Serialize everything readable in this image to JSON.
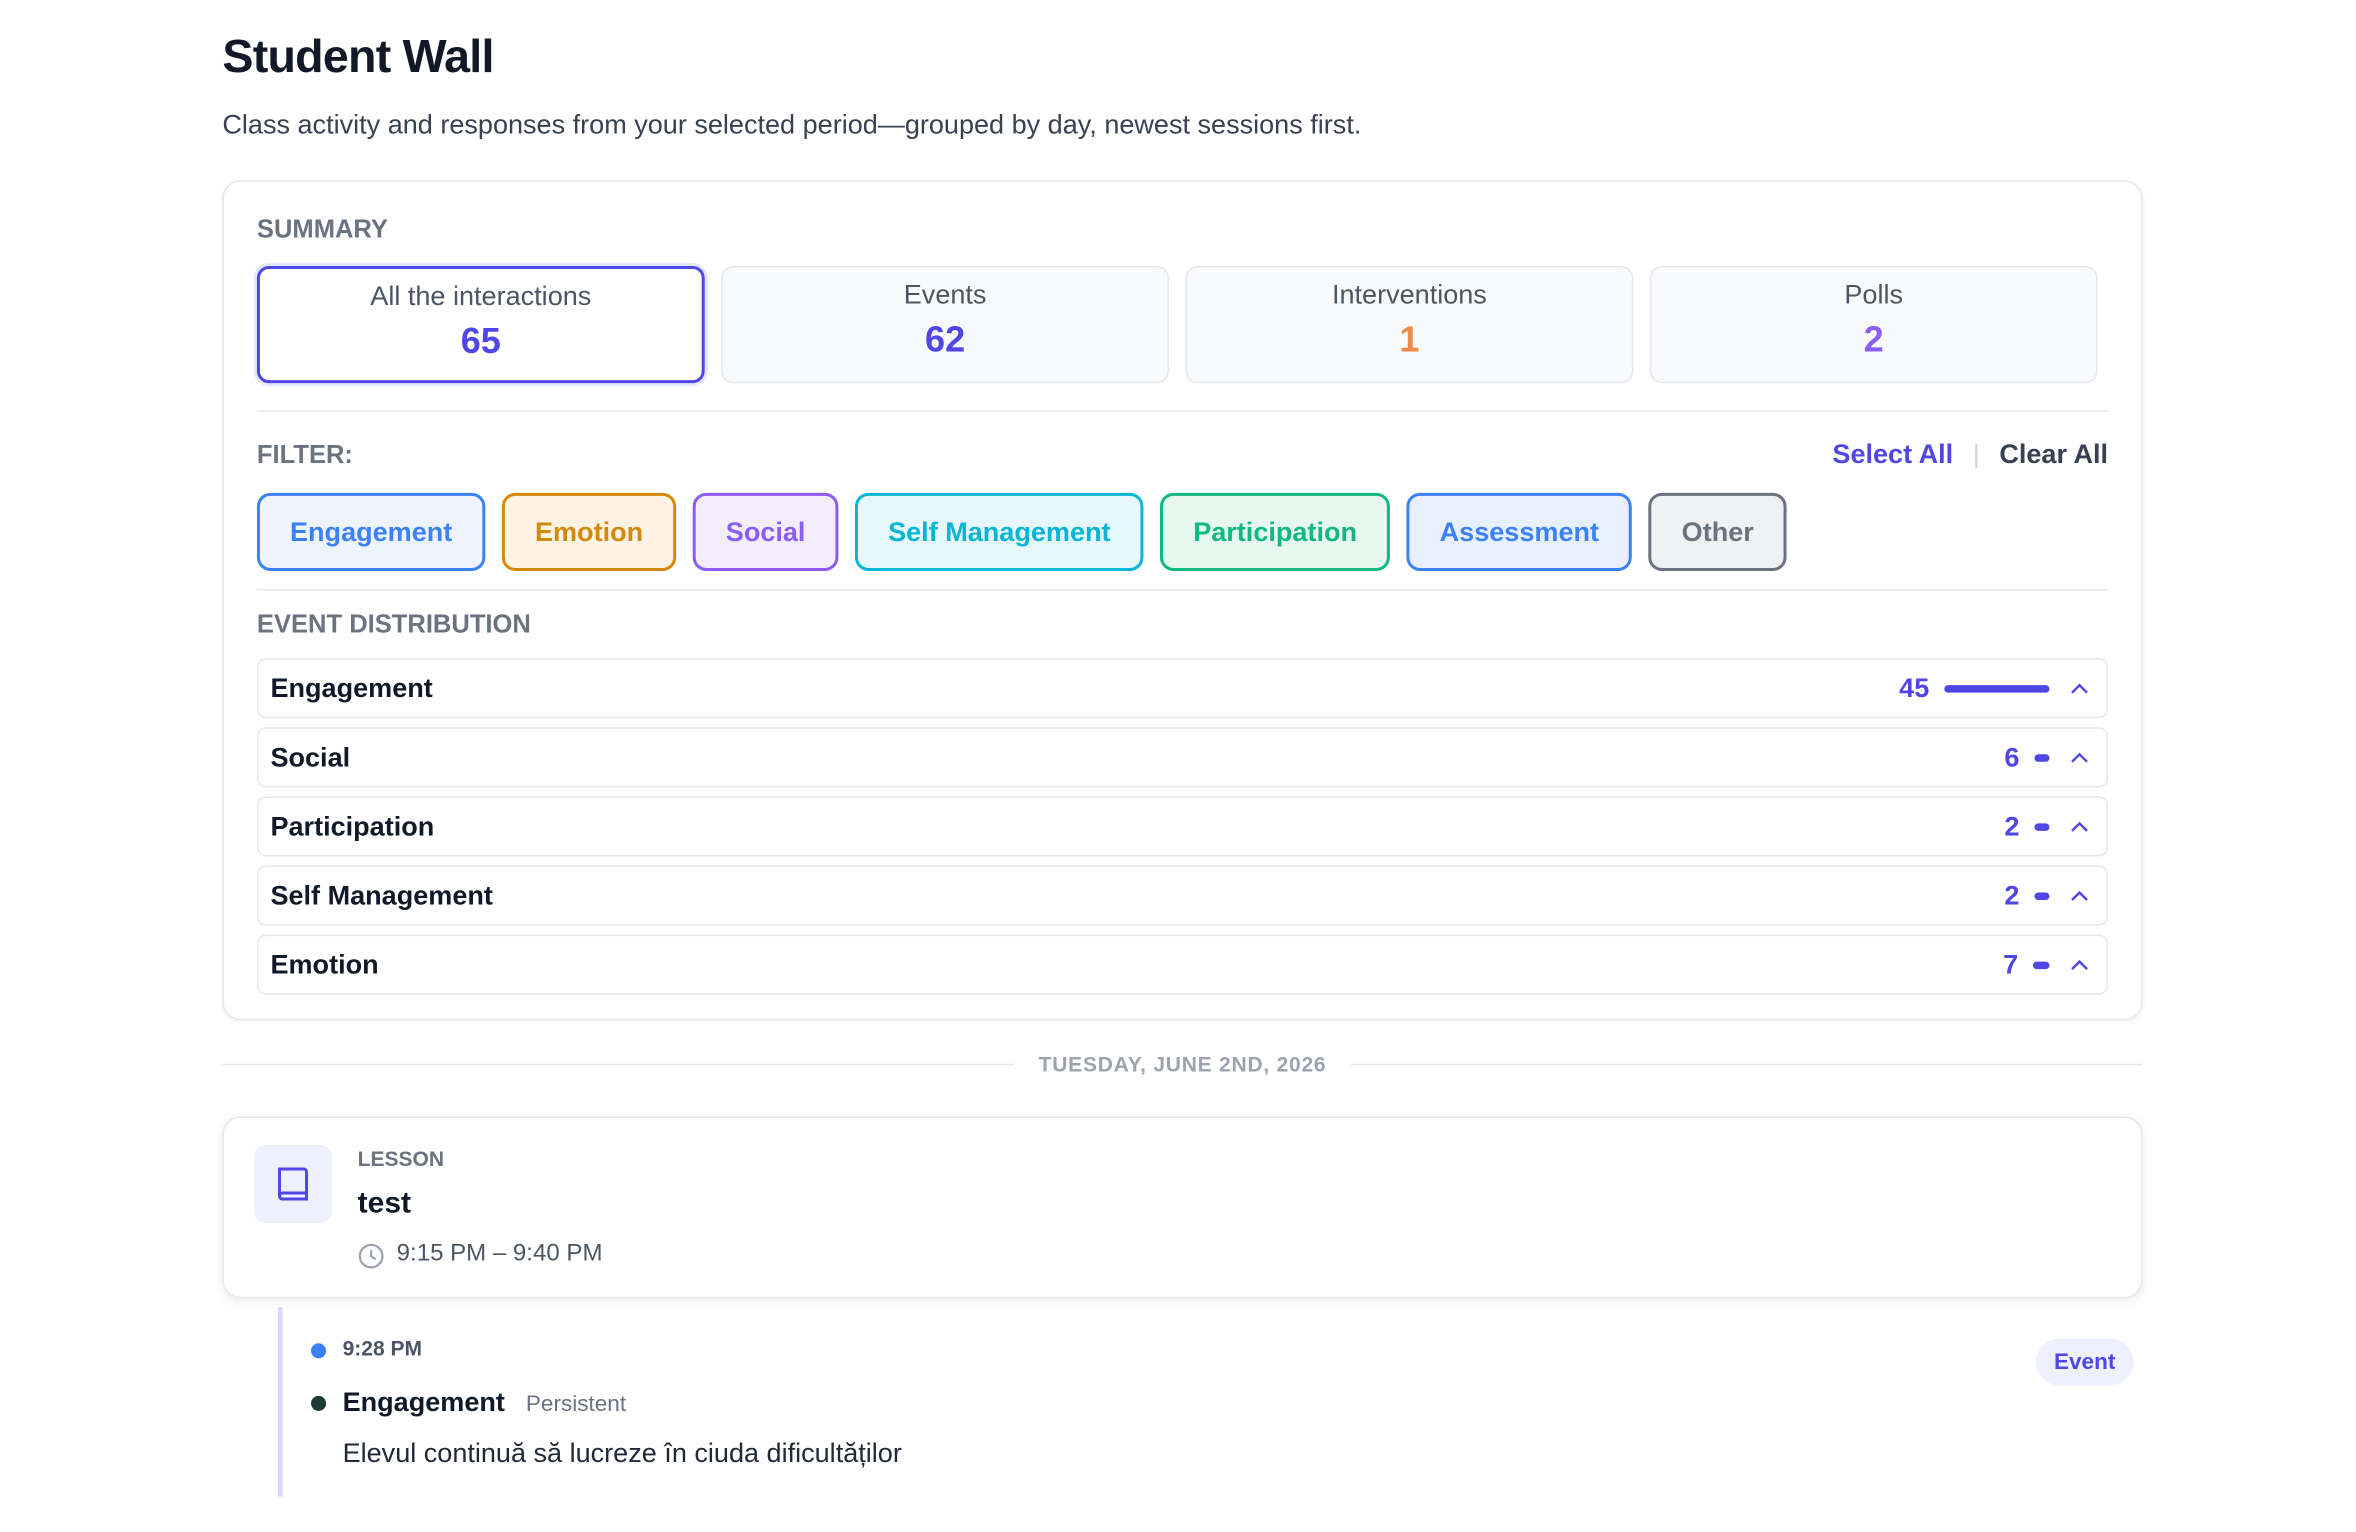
{
  "header": {
    "title": "Student Wall",
    "subtitle": "Class activity and responses from your selected period—grouped by day, newest sessions first."
  },
  "summary": {
    "label": "SUMMARY",
    "cards": [
      {
        "label": "All the interactions",
        "value": 65
      },
      {
        "label": "Events",
        "value": 62
      },
      {
        "label": "Interventions",
        "value": 1
      },
      {
        "label": "Polls",
        "value": 2
      }
    ]
  },
  "filter": {
    "label": "FILTER:",
    "select_all": "Select All",
    "clear_all": "Clear All",
    "chips": [
      "Engagement",
      "Emotion",
      "Social",
      "Self Management",
      "Participation",
      "Assessment",
      "Other"
    ]
  },
  "distribution": {
    "label": "EVENT DISTRIBUTION",
    "rows": [
      {
        "name": "Engagement",
        "count": 45
      },
      {
        "name": "Social",
        "count": 6
      },
      {
        "name": "Participation",
        "count": 2
      },
      {
        "name": "Self Management",
        "count": 2
      },
      {
        "name": "Emotion",
        "count": 7
      }
    ]
  },
  "day": {
    "date": "TUESDAY, JUNE 2ND, 2026",
    "lesson": {
      "kind": "LESSON",
      "title": "test",
      "time": "9:15 PM – 9:40 PM"
    },
    "entries": [
      {
        "time": "9:28 PM",
        "category": "Engagement",
        "tag": "Persistent",
        "text": "Elevul continuă să lucreze în ciuda dificultăților",
        "badge": "Event"
      }
    ]
  }
}
